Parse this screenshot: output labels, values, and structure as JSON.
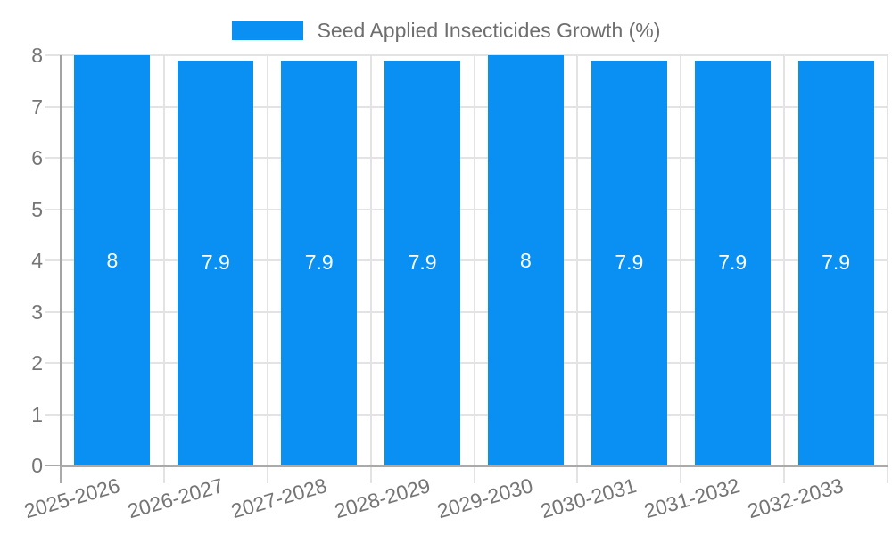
{
  "legend": {
    "label": "Seed Applied Insecticides Growth (%)"
  },
  "chart_data": {
    "type": "bar",
    "title": "Seed Applied Insecticides Growth (%)",
    "categories": [
      "2025-2026",
      "2026-2027",
      "2027-2028",
      "2028-2029",
      "2029-2030",
      "2030-2031",
      "2031-2032",
      "2032-2033"
    ],
    "values": [
      8,
      7.9,
      7.9,
      7.9,
      8,
      7.9,
      7.9,
      7.9
    ],
    "bar_labels": [
      "8",
      "7.9",
      "7.9",
      "7.9",
      "8",
      "7.9",
      "7.9",
      "7.9"
    ],
    "xlabel": "",
    "ylabel": "",
    "ylim": [
      0,
      8
    ],
    "y_ticks": [
      0,
      1,
      2,
      3,
      4,
      5,
      6,
      7,
      8
    ],
    "grid": true,
    "legend_position": "top",
    "x_label_rotation_deg": -16,
    "colors": {
      "bar": "#0990f2",
      "grid": "#e3e3e3",
      "y_axis": "#a3a3a3",
      "x_axis": "#aaaaaa",
      "tick_text": "#757575",
      "legend_text": "#6e6e6e",
      "value_label": "#ffffff",
      "background": "#ffffff"
    }
  }
}
